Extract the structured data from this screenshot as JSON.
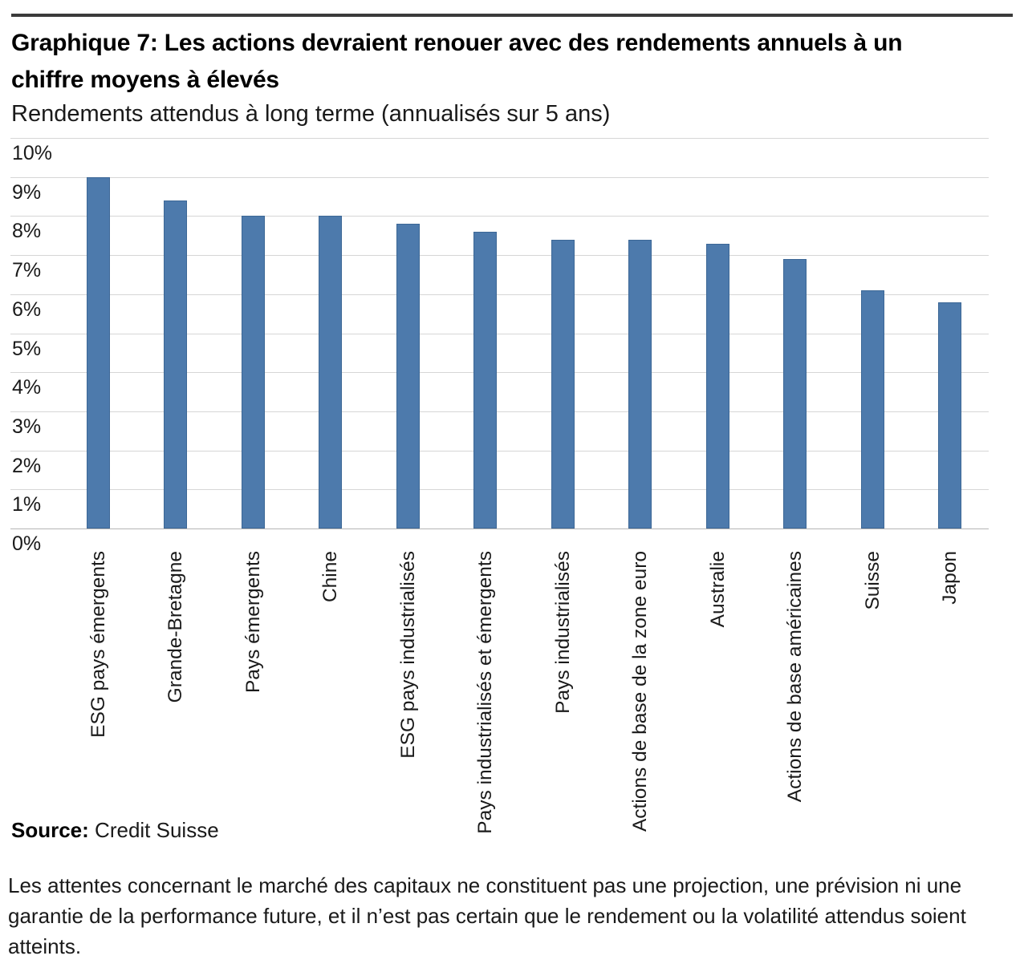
{
  "header": {
    "title_lines": [
      "Graphique 7: Les actions devraient renouer avec des rendements annuels à un",
      "chiffre moyens à élevés"
    ],
    "subtitle": "Rendements attendus à long terme (annualisés sur 5 ans)"
  },
  "chart_data": {
    "type": "bar",
    "title": "Graphique 7: Les actions devraient renouer avec des rendements annuels à un chiffre moyens à élevés",
    "subtitle": "Rendements attendus à long terme (annualisés sur 5 ans)",
    "categories": [
      "ESG pays émergents",
      "Grande-Bretagne",
      "Pays émergents",
      "Chine",
      "ESG pays industrialisés",
      "Pays industrialisés et émergents",
      "Pays industrialisés",
      "Actions de base de la zone euro",
      "Australie",
      "Actions de base américaines",
      "Suisse",
      "Japon"
    ],
    "values": [
      9.0,
      8.4,
      8.0,
      8.0,
      7.8,
      7.6,
      7.4,
      7.4,
      7.3,
      6.9,
      6.1,
      5.8
    ],
    "unit": "%",
    "xlabel": "",
    "ylabel": "",
    "ylim": [
      0,
      10
    ],
    "ytick_labels": [
      "0%",
      "1%",
      "2%",
      "3%",
      "4%",
      "5%",
      "6%",
      "7%",
      "8%",
      "9%",
      "10%"
    ],
    "grid": true,
    "legend": false,
    "bar_color": "#4d7aac"
  },
  "source": {
    "label": "Source:",
    "text": "Credit Suisse"
  },
  "disclaimer": {
    "lines": [
      "Les attentes concernant le marché des capitaux ne constituent pas une projection, une prévision ni une",
      "garantie de la performance future, et il n’est pas certain que le rendement ou la volatilité attendus soient",
      "atteints."
    ],
    "full_text": "Les attentes concernant le marché des capitaux ne constituent pas une projection, une prévision ni une garantie de la performance future, et il n’est pas certain que le rendement ou la volatilité attendus soient atteints."
  }
}
